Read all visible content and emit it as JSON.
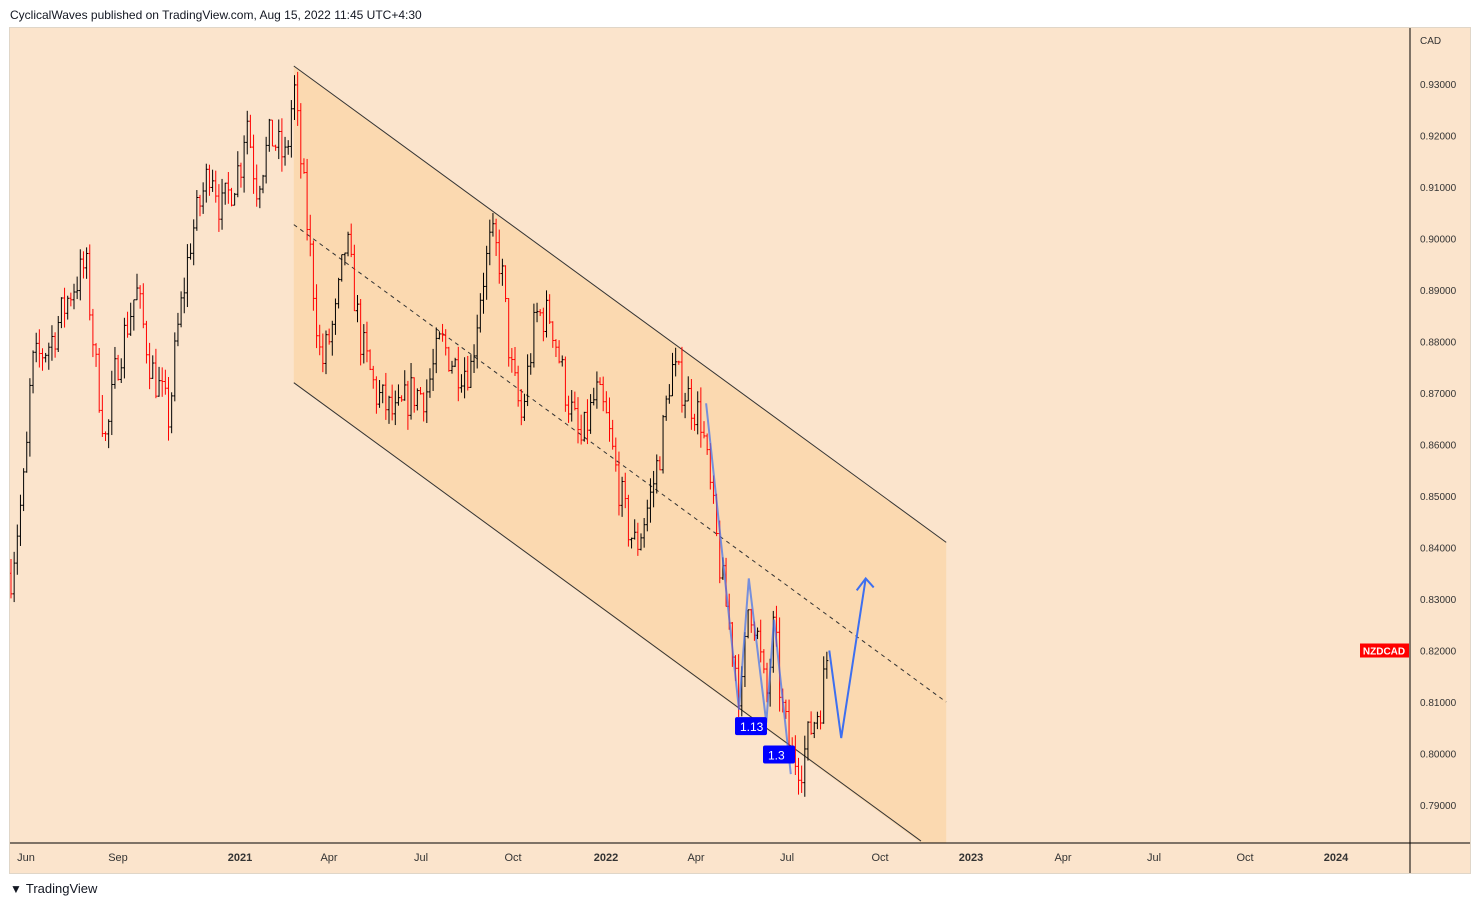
{
  "header": {
    "text": "CyclicalWaves published on TradingView.com, Aug 15, 2022 11:45 UTC+4:30"
  },
  "footer": {
    "brand": "TradingView",
    "logo_glyph": "17"
  },
  "colors": {
    "background": "#fbe4cc",
    "channel_fill": "#fbd9b0",
    "up_bar": "#000000",
    "down_bar": "#ff0000",
    "projection": "#3d6ff0",
    "label_bg": "#0000ff",
    "symbol_tag": "#ff0000"
  },
  "chart_data": {
    "type": "ohlc",
    "symbol": "NZDCAD",
    "currency": "CAD",
    "ylim": [
      0.7815,
      0.9415
    ],
    "y_ticks": [
      "0.93000",
      "0.92000",
      "0.91000",
      "0.90000",
      "0.89000",
      "0.88000",
      "0.87000",
      "0.86000",
      "0.85000",
      "0.84000",
      "0.83000",
      "0.82000",
      "0.81000",
      "0.80000",
      "0.79000"
    ],
    "x_ticks": [
      "Jun",
      "Sep",
      "2021",
      "Apr",
      "Jul",
      "Oct",
      "2022",
      "Apr",
      "Jul",
      "Oct",
      "2023",
      "Apr",
      "Jul",
      "Oct",
      "2024"
    ],
    "x_unit": "weeks since mid-May 2020",
    "price_path": [
      [
        0,
        0.835
      ],
      [
        2.1,
        0.855
      ],
      [
        2.9,
        0.875
      ],
      [
        5.7,
        0.88
      ],
      [
        8.6,
        0.89
      ],
      [
        10.7,
        0.895
      ],
      [
        12.1,
        0.875
      ],
      [
        13.6,
        0.86
      ],
      [
        15,
        0.875
      ],
      [
        17.9,
        0.89
      ],
      [
        20,
        0.875
      ],
      [
        21.4,
        0.87
      ],
      [
        22.6,
        0.865
      ],
      [
        23.6,
        0.88
      ],
      [
        25.7,
        0.9
      ],
      [
        28.6,
        0.915
      ],
      [
        30,
        0.905
      ],
      [
        32.9,
        0.915
      ],
      [
        33.6,
        0.925
      ],
      [
        35,
        0.91
      ],
      [
        37.1,
        0.92
      ],
      [
        39.3,
        0.915
      ],
      [
        40.4,
        0.93
      ],
      [
        41.4,
        0.915
      ],
      [
        42.9,
        0.895
      ],
      [
        44.3,
        0.875
      ],
      [
        46.4,
        0.885
      ],
      [
        47.9,
        0.9
      ],
      [
        50,
        0.88
      ],
      [
        52.1,
        0.87
      ],
      [
        55,
        0.865
      ],
      [
        57.1,
        0.87
      ],
      [
        59.3,
        0.87
      ],
      [
        61.4,
        0.88
      ],
      [
        63.6,
        0.875
      ],
      [
        65.7,
        0.875
      ],
      [
        67.1,
        0.89
      ],
      [
        68.6,
        0.9
      ],
      [
        70,
        0.895
      ],
      [
        71.4,
        0.875
      ],
      [
        72.9,
        0.865
      ],
      [
        75,
        0.885
      ],
      [
        77.1,
        0.885
      ],
      [
        79.3,
        0.87
      ],
      [
        81.4,
        0.86
      ],
      [
        83.6,
        0.87
      ],
      [
        85,
        0.865
      ],
      [
        86.4,
        0.855
      ],
      [
        87.9,
        0.845
      ],
      [
        89.3,
        0.84
      ],
      [
        91.4,
        0.85
      ],
      [
        92.9,
        0.86
      ],
      [
        94.3,
        0.875
      ],
      [
        96.4,
        0.87
      ],
      [
        98.6,
        0.865
      ],
      [
        100,
        0.85
      ],
      [
        101.4,
        0.835
      ],
      [
        102.6,
        0.825
      ],
      [
        104.3,
        0.81
      ],
      [
        105.4,
        0.83
      ],
      [
        106.4,
        0.825
      ],
      [
        107.9,
        0.81
      ],
      [
        109,
        0.825
      ],
      [
        110,
        0.81
      ],
      [
        111.4,
        0.8
      ],
      [
        112.9,
        0.798
      ],
      [
        114.3,
        0.805
      ],
      [
        115.7,
        0.81
      ],
      [
        116.9,
        0.822
      ]
    ],
    "channel": {
      "upper": [
        [
          40.4,
          0.9335
        ],
        [
          133.6,
          0.841
        ]
      ],
      "lower": [
        [
          40.4,
          0.872
        ],
        [
          130,
          0.783
        ]
      ],
      "median": [
        [
          40.4,
          0.9027
        ],
        [
          133.6,
          0.81
        ]
      ]
    },
    "projection": [
      [
        116.9,
        0.82
      ],
      [
        118.6,
        0.803
      ],
      [
        122.1,
        0.834
      ]
    ],
    "wave_path": [
      [
        99.3,
        0.868
      ],
      [
        104,
        0.8085
      ],
      [
        105.4,
        0.834
      ],
      [
        107.9,
        0.806
      ],
      [
        109,
        0.826
      ],
      [
        111.4,
        0.796
      ]
    ],
    "annotations": [
      {
        "text": "1.13",
        "week": 104,
        "price": 0.8055
      },
      {
        "text": "1.3",
        "week": 108,
        "price": 0.8
      }
    ]
  }
}
